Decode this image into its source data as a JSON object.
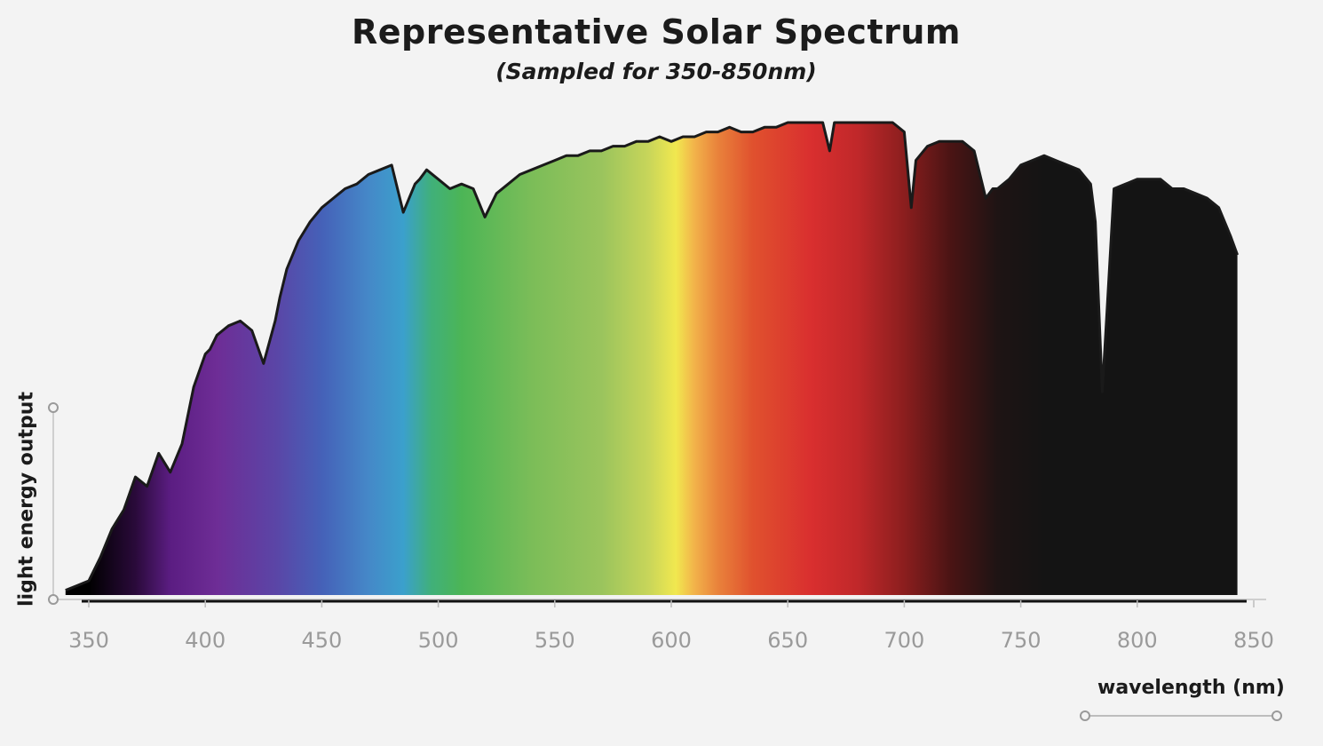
{
  "chart_data": {
    "type": "area",
    "title": "Representative Solar Spectrum",
    "subtitle": "(Sampled for 350-850nm)",
    "xlabel": "wavelength (nm)",
    "ylabel": "light energy output",
    "xlim": [
      350,
      850
    ],
    "ylim": [
      0,
      100
    ],
    "x_ticks": [
      350,
      400,
      450,
      500,
      550,
      600,
      650,
      700,
      750,
      800,
      850
    ],
    "y_ticks_shown": false,
    "grid": false,
    "fill": "visible-spectrum color gradient by wavelength",
    "x": [
      340,
      345,
      350,
      355,
      360,
      365,
      370,
      375,
      380,
      385,
      390,
      395,
      400,
      402,
      405,
      410,
      415,
      420,
      425,
      430,
      432,
      435,
      440,
      445,
      450,
      455,
      460,
      465,
      470,
      475,
      480,
      485,
      490,
      492,
      495,
      500,
      505,
      510,
      515,
      520,
      525,
      530,
      535,
      540,
      545,
      550,
      555,
      560,
      565,
      570,
      575,
      580,
      585,
      590,
      595,
      600,
      605,
      610,
      615,
      620,
      625,
      630,
      635,
      640,
      645,
      650,
      655,
      660,
      665,
      668,
      670,
      675,
      680,
      685,
      690,
      695,
      700,
      703,
      705,
      710,
      715,
      720,
      725,
      730,
      735,
      738,
      740,
      745,
      750,
      755,
      760,
      765,
      770,
      775,
      780,
      782,
      785,
      787,
      790,
      795,
      800,
      805,
      810,
      815,
      820,
      825,
      830,
      835,
      840,
      843
    ],
    "y": [
      1,
      2,
      3,
      8,
      14,
      18,
      25,
      23,
      30,
      26,
      32,
      44,
      51,
      52,
      55,
      57,
      58,
      56,
      49,
      58,
      63,
      69,
      75,
      79,
      82,
      84,
      86,
      87,
      89,
      90,
      91,
      81,
      87,
      88,
      90,
      88,
      86,
      87,
      86,
      80,
      85,
      87,
      89,
      90,
      91,
      92,
      93,
      93,
      94,
      94,
      95,
      95,
      96,
      96,
      97,
      96,
      97,
      97,
      98,
      98,
      99,
      98,
      98,
      99,
      99,
      100,
      100,
      100,
      100,
      94,
      100,
      100,
      100,
      100,
      100,
      100,
      98,
      82,
      92,
      95,
      96,
      96,
      96,
      94,
      84,
      86,
      86,
      88,
      91,
      92,
      93,
      92,
      91,
      90,
      87,
      79,
      43,
      60,
      86,
      87,
      88,
      88,
      88,
      86,
      86,
      85,
      84,
      82,
      76,
      72
    ],
    "series": [
      {
        "name": "",
        "color": "#1a1a1a"
      }
    ],
    "spectrum_colors": [
      {
        "nm": 350,
        "color": "#000000"
      },
      {
        "nm": 370,
        "color": "#2a0a3a"
      },
      {
        "nm": 385,
        "color": "#5b1d82"
      },
      {
        "nm": 405,
        "color": "#6e2d96"
      },
      {
        "nm": 430,
        "color": "#5b45a6"
      },
      {
        "nm": 450,
        "color": "#4561b8"
      },
      {
        "nm": 470,
        "color": "#4588c8"
      },
      {
        "nm": 485,
        "color": "#3ba0cc"
      },
      {
        "nm": 497,
        "color": "#40b07a"
      },
      {
        "nm": 510,
        "color": "#4cb556"
      },
      {
        "nm": 540,
        "color": "#7bbd58"
      },
      {
        "nm": 570,
        "color": "#9ac45d"
      },
      {
        "nm": 590,
        "color": "#c7d55a"
      },
      {
        "nm": 602,
        "color": "#f1e84f"
      },
      {
        "nm": 610,
        "color": "#f2b24a"
      },
      {
        "nm": 620,
        "color": "#e9823b"
      },
      {
        "nm": 635,
        "color": "#e0512e"
      },
      {
        "nm": 660,
        "color": "#d92f2f"
      },
      {
        "nm": 680,
        "color": "#c0282a"
      },
      {
        "nm": 700,
        "color": "#8b1e1e"
      },
      {
        "nm": 720,
        "color": "#4a1414"
      },
      {
        "nm": 740,
        "color": "#1e1414"
      },
      {
        "nm": 760,
        "color": "#141414"
      }
    ]
  }
}
